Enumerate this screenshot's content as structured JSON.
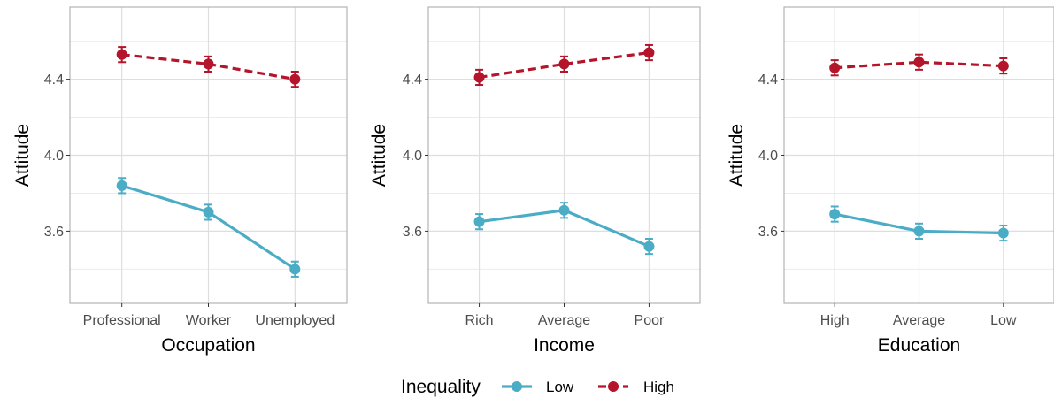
{
  "colors": {
    "low": "#4bacc6",
    "high": "#b5152b",
    "grid_major": "#dedede",
    "grid_minor": "#ececec",
    "panel_border": "#b3b3b3",
    "tick_text": "#4d4d4d"
  },
  "legend": {
    "title": "Inequality",
    "position": "bottom",
    "items": [
      {
        "label": "Low",
        "color_key": "low",
        "linetype": "solid"
      },
      {
        "label": "High",
        "color_key": "high",
        "linetype": "dashed"
      }
    ]
  },
  "chart_data": [
    {
      "type": "line",
      "xlabel": "Occupation",
      "ylabel": "Attitude",
      "categories": [
        "Professional",
        "Worker",
        "Unemployed"
      ],
      "ylim": [
        3.22,
        4.78
      ],
      "yticks": [
        3.6,
        4.0,
        4.4
      ],
      "ytick_labels": [
        "3.6",
        "4.0",
        "4.4"
      ],
      "grid": true,
      "series": [
        {
          "name": "Low",
          "color_key": "low",
          "dashed": false,
          "values": [
            3.84,
            3.7,
            3.4
          ],
          "ci_low": [
            3.8,
            3.66,
            3.36
          ],
          "ci_high": [
            3.88,
            3.74,
            3.44
          ]
        },
        {
          "name": "High",
          "color_key": "high",
          "dashed": true,
          "values": [
            4.53,
            4.48,
            4.4
          ],
          "ci_low": [
            4.49,
            4.44,
            4.36
          ],
          "ci_high": [
            4.57,
            4.52,
            4.44
          ]
        }
      ]
    },
    {
      "type": "line",
      "xlabel": "Income",
      "ylabel": "Attitude",
      "categories": [
        "Rich",
        "Average",
        "Poor"
      ],
      "ylim": [
        3.22,
        4.78
      ],
      "yticks": [
        3.6,
        4.0,
        4.4
      ],
      "ytick_labels": [
        "3.6",
        "4.0",
        "4.4"
      ],
      "grid": true,
      "series": [
        {
          "name": "Low",
          "color_key": "low",
          "dashed": false,
          "values": [
            3.65,
            3.71,
            3.52
          ],
          "ci_low": [
            3.61,
            3.67,
            3.48
          ],
          "ci_high": [
            3.69,
            3.75,
            3.56
          ]
        },
        {
          "name": "High",
          "color_key": "high",
          "dashed": true,
          "values": [
            4.41,
            4.48,
            4.54
          ],
          "ci_low": [
            4.37,
            4.44,
            4.5
          ],
          "ci_high": [
            4.45,
            4.52,
            4.58
          ]
        }
      ]
    },
    {
      "type": "line",
      "xlabel": "Education",
      "ylabel": "Attitude",
      "categories": [
        "High",
        "Average",
        "Low"
      ],
      "ylim": [
        3.22,
        4.78
      ],
      "yticks": [
        3.6,
        4.0,
        4.4
      ],
      "ytick_labels": [
        "3.6",
        "4.0",
        "4.4"
      ],
      "grid": true,
      "series": [
        {
          "name": "Low",
          "color_key": "low",
          "dashed": false,
          "values": [
            3.69,
            3.6,
            3.59
          ],
          "ci_low": [
            3.65,
            3.56,
            3.55
          ],
          "ci_high": [
            3.73,
            3.64,
            3.63
          ]
        },
        {
          "name": "High",
          "color_key": "high",
          "dashed": true,
          "values": [
            4.46,
            4.49,
            4.47
          ],
          "ci_low": [
            4.42,
            4.45,
            4.43
          ],
          "ci_high": [
            4.5,
            4.53,
            4.51
          ]
        }
      ]
    }
  ]
}
